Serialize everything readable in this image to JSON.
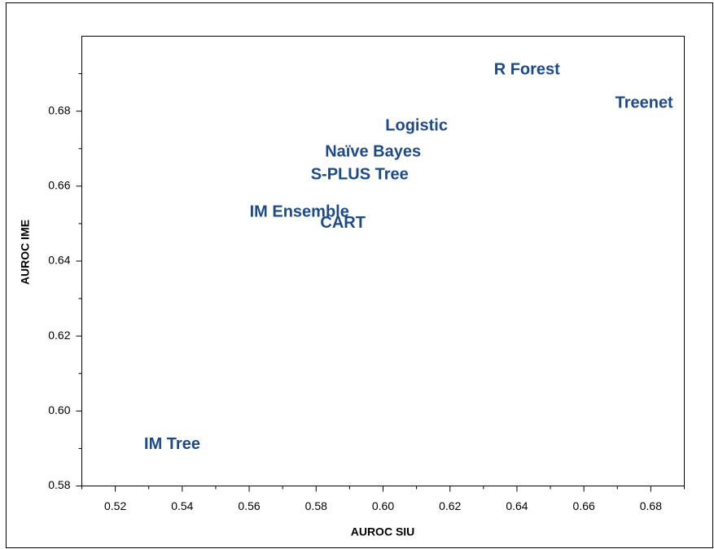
{
  "chart_data": {
    "type": "scatter",
    "xlabel": "AUROC SIU",
    "ylabel": "AUROC IME",
    "labels": [
      "R Forest",
      "Treenet",
      "Logistic",
      "Naïve Bayes",
      "S-PLUS Tree",
      "IM Ensemble",
      "CART",
      "IM Tree"
    ],
    "x": [
      0.643,
      0.678,
      0.61,
      0.597,
      0.593,
      0.575,
      0.588,
      0.537
    ],
    "values": [
      0.691,
      0.682,
      0.676,
      0.669,
      0.663,
      0.653,
      0.65,
      0.591
    ],
    "color": "#1d4b87",
    "xlim": [
      0.51,
      0.69
    ],
    "xticks": [
      0.52,
      0.54,
      0.56,
      0.58,
      {
        "value": 0.6,
        "label": "0.60"
      },
      0.62,
      0.64,
      0.66,
      0.68
    ],
    "x_minor_ticks": [
      0.51,
      0.53,
      0.55,
      0.57,
      0.59,
      0.61,
      0.63,
      0.65,
      0.67,
      0.69
    ],
    "ylim": [
      0.58,
      0.7
    ],
    "yticks": [
      0.58,
      {
        "value": 0.6,
        "label": "0.60"
      },
      0.62,
      0.64,
      0.66,
      0.68
    ],
    "y_minor_ticks": [
      0.59,
      0.61,
      0.63,
      0.65,
      0.67,
      0.69
    ]
  }
}
